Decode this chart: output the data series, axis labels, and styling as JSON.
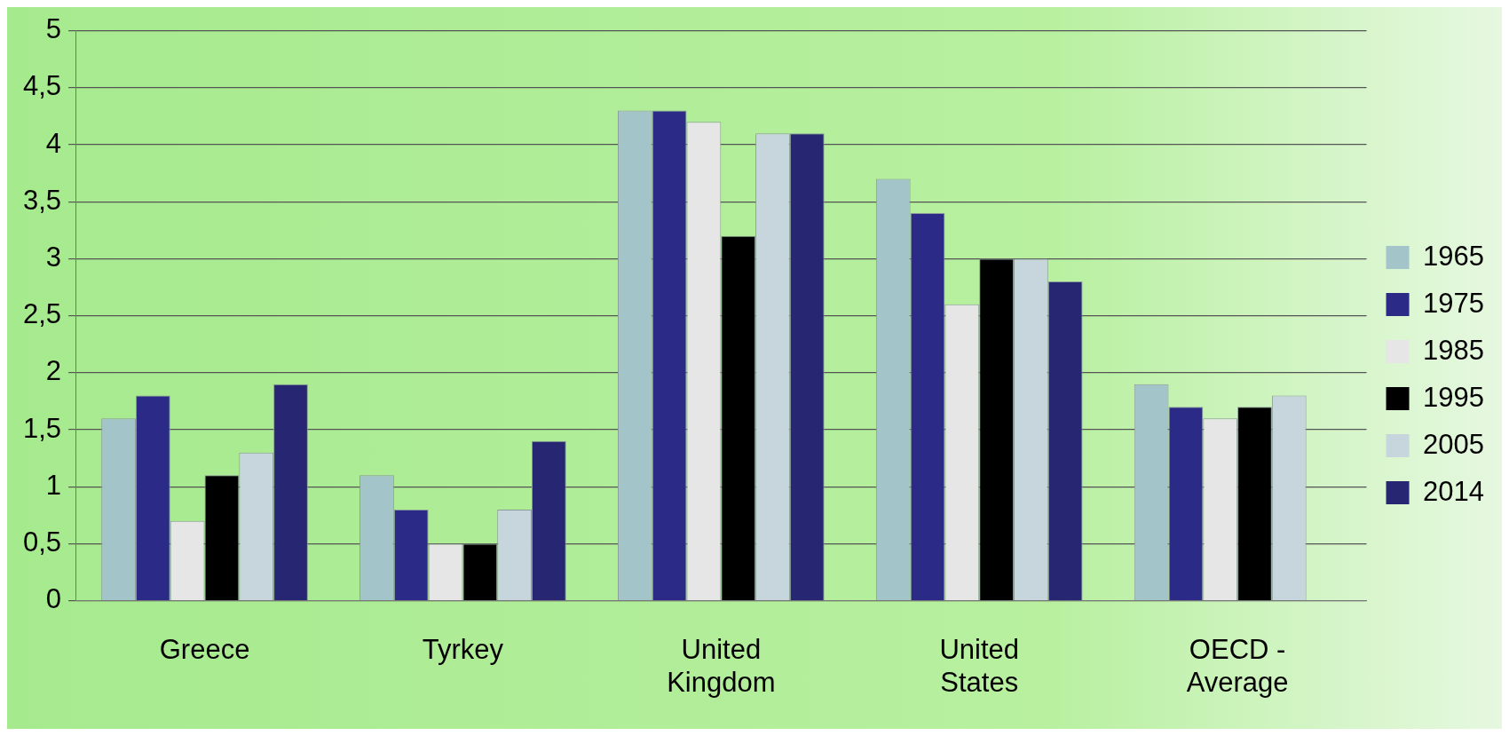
{
  "chart_data": {
    "type": "bar",
    "categories": [
      "Greece",
      "Tyrkey",
      "United Kingdom",
      "United States",
      "OECD - Average"
    ],
    "series": [
      {
        "name": "1965",
        "color": "#a3c4c8",
        "values": [
          1.6,
          1.1,
          4.3,
          3.7,
          1.9
        ]
      },
      {
        "name": "1975",
        "color": "#2b2a86",
        "values": [
          1.8,
          0.8,
          4.3,
          3.4,
          1.7
        ]
      },
      {
        "name": "1985",
        "color": "#e6e6e6",
        "values": [
          0.7,
          0.5,
          4.2,
          2.6,
          1.6
        ]
      },
      {
        "name": "1995",
        "color": "#000000",
        "values": [
          1.1,
          0.5,
          3.2,
          3.0,
          1.7
        ]
      },
      {
        "name": "2005",
        "color": "#c6d6dc",
        "values": [
          1.3,
          0.8,
          4.1,
          3.0,
          1.8
        ]
      },
      {
        "name": "2014",
        "color": "#262673",
        "values": [
          1.9,
          1.4,
          4.1,
          2.8,
          null
        ]
      }
    ],
    "ylim": [
      0,
      5
    ],
    "yticks": [
      0,
      {
        "value": 0.5,
        "label": "0,5"
      },
      1,
      {
        "value": 1.5,
        "label": "1,5"
      },
      2,
      {
        "value": 2.5,
        "label": "2,5"
      },
      3,
      {
        "value": 3.5,
        "label": "3,5"
      },
      4,
      {
        "value": 4.5,
        "label": "4,5"
      },
      5
    ],
    "grid": "y",
    "legend": "right"
  }
}
